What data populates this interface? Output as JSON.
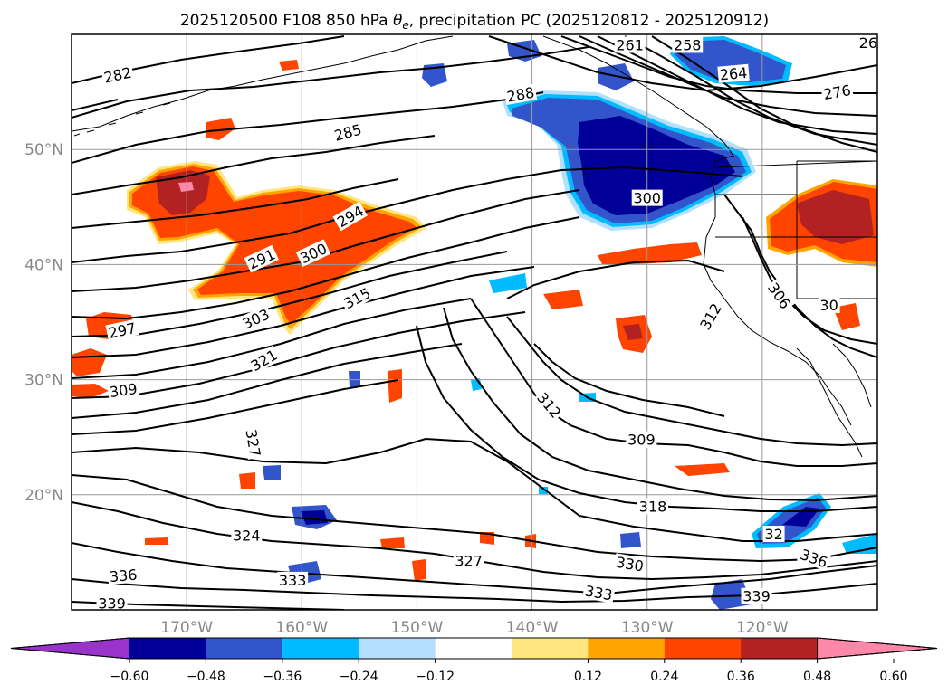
{
  "title": "2025120500 F108 850 hPa θe, precipitation PC (2025120812 - 2025120912)",
  "title_parts": {
    "prefix": "2025120500 F108 850 hPa ",
    "theta": "θ",
    "sub": "e",
    "suffix": ", precipitation PC (2025120812 - 2025120912)"
  },
  "map": {
    "lon_range": [
      -180,
      -110
    ],
    "lat_range": [
      10,
      60
    ],
    "lon_ticks": [
      {
        "value": -170,
        "label": "170°W"
      },
      {
        "value": -160,
        "label": "160°W"
      },
      {
        "value": -150,
        "label": "150°W"
      },
      {
        "value": -140,
        "label": "140°W"
      },
      {
        "value": -130,
        "label": "130°W"
      },
      {
        "value": -120,
        "label": "120°W"
      }
    ],
    "lat_ticks": [
      {
        "value": 50,
        "label": "50°N"
      },
      {
        "value": 40,
        "label": "40°N"
      },
      {
        "value": 30,
        "label": "30°N"
      },
      {
        "value": 20,
        "label": "20°N"
      }
    ],
    "contour_labels": [
      {
        "text": "282",
        "lon": -176,
        "lat": 56.5,
        "angle": -12
      },
      {
        "text": "285",
        "lon": -156,
        "lat": 51.5,
        "angle": -15
      },
      {
        "text": "288",
        "lon": -141,
        "lat": 54.8,
        "angle": -10
      },
      {
        "text": "261",
        "lon": -131.5,
        "lat": 59.1,
        "angle": 0
      },
      {
        "text": "258",
        "lon": -126.5,
        "lat": 59.1,
        "angle": 0
      },
      {
        "text": "264",
        "lon": -122.5,
        "lat": 56.6,
        "angle": -5
      },
      {
        "text": "276",
        "lon": -113.5,
        "lat": 55.0,
        "angle": -10
      },
      {
        "text": "26",
        "lon": -110.8,
        "lat": 59.3,
        "angle": 0
      },
      {
        "text": "294",
        "lon": -155.8,
        "lat": 44.2,
        "angle": -30
      },
      {
        "text": "300",
        "lon": -130,
        "lat": 45.8,
        "angle": 0
      },
      {
        "text": "291",
        "lon": -163.5,
        "lat": 40.5,
        "angle": -25
      },
      {
        "text": "300",
        "lon": -159,
        "lat": 41,
        "angle": -25
      },
      {
        "text": "315",
        "lon": -155.2,
        "lat": 37.1,
        "angle": -28
      },
      {
        "text": "303",
        "lon": -164,
        "lat": 35.3,
        "angle": -25
      },
      {
        "text": "297",
        "lon": -175.6,
        "lat": 34.3,
        "angle": -12
      },
      {
        "text": "321",
        "lon": -163.3,
        "lat": 31.7,
        "angle": -30
      },
      {
        "text": "309",
        "lon": -175.5,
        "lat": 29.1,
        "angle": -8
      },
      {
        "text": "312",
        "lon": -124.5,
        "lat": 35.5,
        "angle": -60
      },
      {
        "text": "306",
        "lon": -118.5,
        "lat": 37.3,
        "angle": 55
      },
      {
        "text": "30",
        "lon": -114.2,
        "lat": 36.5,
        "angle": 0
      },
      {
        "text": "312",
        "lon": -138.5,
        "lat": 27.8,
        "angle": 50
      },
      {
        "text": "309",
        "lon": -130.5,
        "lat": 24.8,
        "angle": 0
      },
      {
        "text": "318",
        "lon": -129.5,
        "lat": 19.0,
        "angle": 0
      },
      {
        "text": "327",
        "lon": -164.2,
        "lat": 24.5,
        "angle": 80
      },
      {
        "text": "324",
        "lon": -164.8,
        "lat": 16.5,
        "angle": 0
      },
      {
        "text": "327",
        "lon": -145.5,
        "lat": 14.3,
        "angle": 0
      },
      {
        "text": "330",
        "lon": -131.5,
        "lat": 14.0,
        "angle": 10
      },
      {
        "text": "32",
        "lon": -119.0,
        "lat": 16.6,
        "angle": 0
      },
      {
        "text": "336",
        "lon": -115.5,
        "lat": 14.5,
        "angle": 20
      },
      {
        "text": "336",
        "lon": -175.5,
        "lat": 13.0,
        "angle": -5
      },
      {
        "text": "333",
        "lon": -160.8,
        "lat": 12.6,
        "angle": 0
      },
      {
        "text": "333",
        "lon": -134.2,
        "lat": 11.5,
        "angle": 10
      },
      {
        "text": "339",
        "lon": -120.5,
        "lat": 11.2,
        "angle": 0
      },
      {
        "text": "339",
        "lon": -176.5,
        "lat": 10.6,
        "angle": 0
      }
    ]
  },
  "colorbar": {
    "tick_labels": [
      "−0.60",
      "−0.48",
      "−0.36",
      "−0.24",
      "−0.12",
      "0.12",
      "0.24",
      "0.36",
      "0.48",
      "0.60"
    ],
    "colors": {
      "under": "#9933cc",
      "neg_060_048": "#000099",
      "neg_048_036": "#3355cc",
      "neg_036_024": "#00bbff",
      "neg_024_012": "#b3e0ff",
      "neutral": "#ffffff",
      "pos_012_024": "#ffe680",
      "pos_024_036": "#ffa500",
      "pos_036_048": "#ff4400",
      "pos_048_060": "#b22222",
      "over": "#ff88aa"
    }
  }
}
